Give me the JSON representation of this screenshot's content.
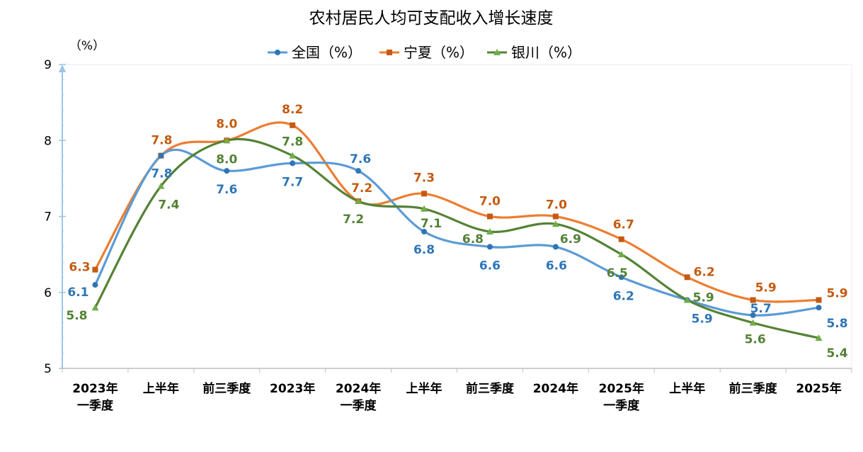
{
  "chart_data": {
    "type": "line",
    "title": "农村居民人均可支配收入增长速度",
    "ylabel": "（%）",
    "xlabel": "",
    "ylim": [
      5,
      9
    ],
    "yticks": [
      5,
      6,
      7,
      8,
      9
    ],
    "grid": false,
    "smooth": true,
    "legend_position": "top",
    "categories": [
      [
        "2023年",
        "一季度"
      ],
      [
        "上半年"
      ],
      [
        "前三季度"
      ],
      [
        "2023年"
      ],
      [
        "2024年",
        "一季度"
      ],
      [
        "上半年"
      ],
      [
        "前三季度"
      ],
      [
        "2024年"
      ],
      [
        "2025年",
        "一季度"
      ],
      [
        "上半年"
      ],
      [
        "前三季度"
      ],
      [
        "2025年"
      ]
    ],
    "series": [
      {
        "name": "全国（%）",
        "color": "#2e75b6",
        "line_color": "#5b9bd5",
        "marker": "circle",
        "values": [
          6.1,
          7.8,
          7.6,
          7.7,
          7.6,
          6.8,
          6.6,
          6.6,
          6.2,
          5.9,
          5.7,
          5.8
        ]
      },
      {
        "name": "宁夏（%）",
        "color": "#c55a11",
        "line_color": "#ed7d31",
        "marker": "square",
        "values": [
          6.3,
          7.8,
          8.0,
          8.2,
          7.2,
          7.3,
          7.0,
          7.0,
          6.7,
          6.2,
          5.9,
          5.9
        ]
      },
      {
        "name": "银川（%）",
        "color": "#538135",
        "line_color": "#548235",
        "marker": "triangle",
        "values": [
          5.8,
          7.4,
          8.0,
          7.8,
          7.2,
          7.1,
          6.8,
          6.9,
          6.5,
          5.9,
          5.6,
          5.4
        ]
      }
    ]
  }
}
